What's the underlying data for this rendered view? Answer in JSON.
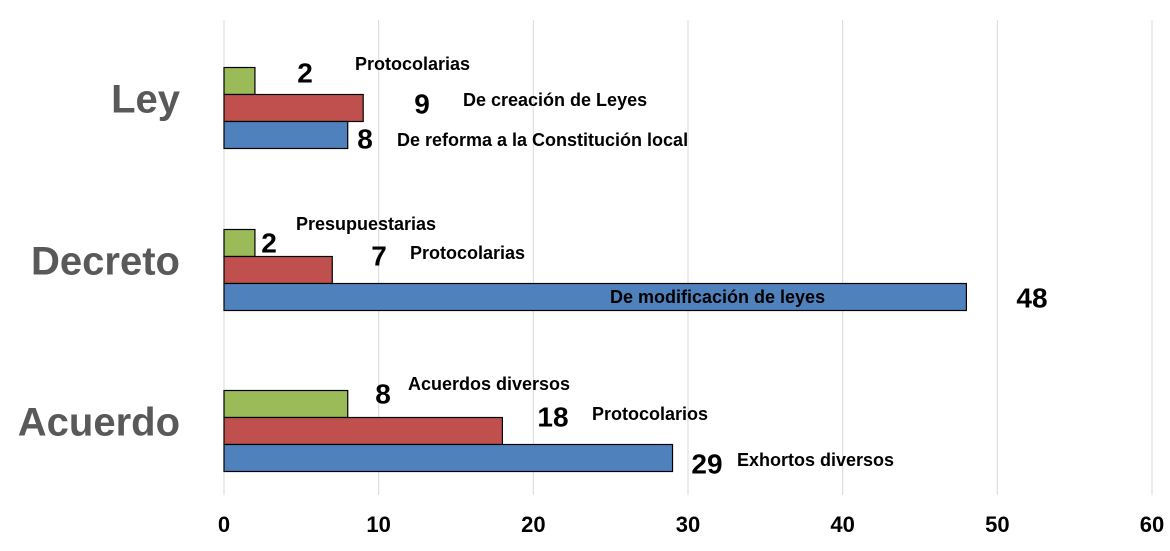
{
  "chart_data": {
    "type": "bar",
    "orientation": "horizontal",
    "categories": [
      "Ley",
      "Decreto",
      "Acuerdo"
    ],
    "series": [
      {
        "color": "#9BBB59",
        "values": [
          2,
          2,
          8
        ],
        "labels": [
          "Protocolarias",
          "Presupuestarias",
          "Acuerdos diversos"
        ]
      },
      {
        "color": "#C0504D",
        "values": [
          9,
          7,
          18
        ],
        "labels": [
          "De creación de Leyes",
          "Protocolarias",
          "Protocolarios"
        ]
      },
      {
        "color": "#4F81BD",
        "values": [
          8,
          48,
          29
        ],
        "labels": [
          "De reforma a la Constitución local",
          "De modificación de leyes",
          "Exhortos diversos"
        ]
      }
    ],
    "xlim": [
      0,
      60
    ],
    "xticks": [
      0,
      10,
      20,
      30,
      40,
      50,
      60
    ],
    "grid": true
  }
}
